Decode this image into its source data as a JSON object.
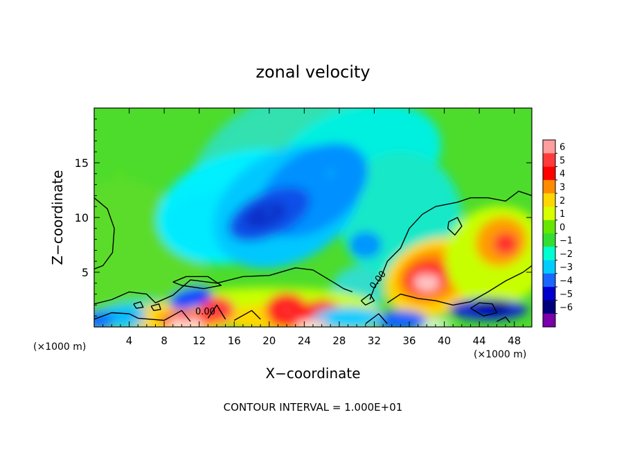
{
  "chart_data": {
    "type": "heatmap",
    "title": "zonal velocity",
    "xlabel": "X−coordinate",
    "ylabel": "Z−coordinate",
    "x_unit": "(×1000 m)",
    "x_unit_right": "(×1000 m)",
    "xlim": [
      0,
      50
    ],
    "ylim": [
      0,
      20
    ],
    "x_ticks": [
      4,
      8,
      12,
      16,
      20,
      24,
      28,
      32,
      36,
      40,
      44,
      48
    ],
    "x_tick_labels": [
      "4",
      "8",
      "12",
      "16",
      "20",
      "24",
      "28",
      "32",
      "36",
      "40",
      "44",
      "48"
    ],
    "y_ticks": [
      5,
      10,
      15
    ],
    "y_tick_labels": [
      "5",
      "10",
      "15"
    ],
    "colorbar": {
      "levels": [
        6,
        5,
        4,
        3,
        2,
        1,
        0,
        -1,
        -2,
        -3,
        -4,
        -5,
        -6
      ],
      "labels": [
        "6",
        "5",
        "4",
        "3",
        "2",
        "1",
        "0",
        "−1",
        "−2",
        "−3",
        "−4",
        "−5",
        "−6"
      ],
      "colors": [
        "#ff9e9e",
        "#ff3a3a",
        "#ff0000",
        "#ff8c00",
        "#ffd700",
        "#d8ff00",
        "#66e600",
        "#33dd33",
        "#00ffd0",
        "#00ccff",
        "#1a66ff",
        "#0000cc",
        "#00007a",
        "#7a00a8"
      ]
    },
    "contour_labels": [
      "0.00",
      "0.00"
    ],
    "contour_interval_text": "CONTOUR INTERVAL = 1.000E+01",
    "field_features": [
      {
        "kind": "min",
        "x": 20,
        "z": 10.5,
        "value": -4
      },
      {
        "kind": "min",
        "x": 27,
        "z": 14,
        "value": -3
      },
      {
        "kind": "min",
        "x": 31,
        "z": 7.5,
        "value": -3
      },
      {
        "kind": "min",
        "x": 3,
        "z": 14,
        "value": 0
      },
      {
        "kind": "max",
        "x": 38,
        "z": 4.5,
        "value": 6
      },
      {
        "kind": "max",
        "x": 47,
        "z": 8,
        "value": 4
      },
      {
        "kind": "max",
        "x": 22,
        "z": 1.5,
        "value": 5
      },
      {
        "kind": "max",
        "x": 26,
        "z": 0.5,
        "value": 6
      },
      {
        "kind": "max",
        "x": 10.5,
        "z": 0.5,
        "value": 6
      },
      {
        "kind": "min",
        "x": 45,
        "z": 1.5,
        "value": -5
      },
      {
        "kind": "min",
        "x": 11,
        "z": 2.5,
        "value": -4
      },
      {
        "kind": "min",
        "x": 35,
        "z": 0.5,
        "value": -4
      },
      {
        "kind": "min",
        "x": 1,
        "z": 0.8,
        "value": -3
      }
    ]
  }
}
